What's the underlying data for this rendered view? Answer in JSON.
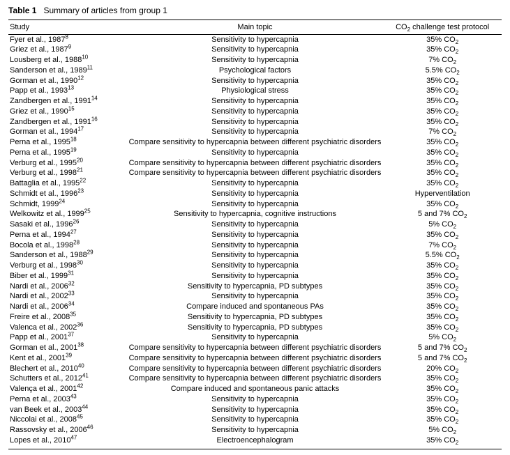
{
  "table": {
    "title_prefix": "Table 1",
    "title_rest": "Summary of articles from group 1",
    "columns": [
      "Study",
      "Main topic",
      "CO2 challenge test protocol"
    ],
    "protocol_header_html": "CO<sub>2</sub> challenge test protocol",
    "rows": [
      {
        "author": "Fyer et al., 1987",
        "ref": "8",
        "topic": "Sensitivity to hypercapnia",
        "protocol": "35% CO2"
      },
      {
        "author": "Griez et al., 1987",
        "ref": "9",
        "topic": "Sensitivity to hypercapnia",
        "protocol": "35% CO2"
      },
      {
        "author": "Lousberg et al., 1988",
        "ref": "10",
        "topic": "Sensitivity to hypercapnia",
        "protocol": "7% CO2"
      },
      {
        "author": "Sanderson et al., 1989",
        "ref": "11",
        "topic": "Psychological factors",
        "protocol": "5.5% CO2"
      },
      {
        "author": "Gorman et al., 1990",
        "ref": "12",
        "topic": "Sensitivity to hypercapnia",
        "protocol": "35% CO2"
      },
      {
        "author": "Papp et al., 1993",
        "ref": "13",
        "topic": "Physiological stress",
        "protocol": "35% CO2"
      },
      {
        "author": "Zandbergen et al., 1991",
        "ref": "14",
        "topic": "Sensitivity to hypercapnia",
        "protocol": "35% CO2"
      },
      {
        "author": "Griez et al., 1990",
        "ref": "15",
        "topic": "Sensitivity to hypercapnia",
        "protocol": "35% CO2"
      },
      {
        "author": "Zandbergen et al., 1991",
        "ref": "16",
        "topic": "Sensitivity to hypercapnia",
        "protocol": "35% CO2"
      },
      {
        "author": "Gorman et al., 1994",
        "ref": "17",
        "topic": "Sensitivity to hypercapnia",
        "protocol": "7% CO2"
      },
      {
        "author": "Perna et al., 1995",
        "ref": "18",
        "topic": "Compare sensitivity to hypercapnia between different psychiatric disorders",
        "protocol": "35% CO2"
      },
      {
        "author": "Perna et al., 1995",
        "ref": "19",
        "topic": "Sensitivity to hypercapnia",
        "protocol": "35% CO2"
      },
      {
        "author": "Verburg et al., 1995",
        "ref": "20",
        "topic": "Compare sensitivity to hypercapnia between different psychiatric disorders",
        "protocol": "35% CO2"
      },
      {
        "author": "Verburg et al., 1998",
        "ref": "21",
        "topic": "Compare sensitivity to hypercapnia between different psychiatric disorders",
        "protocol": "35% CO2"
      },
      {
        "author": "Battaglia et al., 1995",
        "ref": "22",
        "topic": "Sensitivity to hypercapnia",
        "protocol": "35% CO2"
      },
      {
        "author": "Schmidt et al., 1996",
        "ref": "23",
        "topic": "Sensitivity to hypercapnia",
        "protocol": "Hyperventilation"
      },
      {
        "author": "Schmidt, 1999",
        "ref": "24",
        "topic": "Sensitivity to hypercapnia",
        "protocol": "35% CO2"
      },
      {
        "author": "Welkowitz et al., 1999",
        "ref": "25",
        "topic": "Sensitivity to hypercapnia, cognitive instructions",
        "protocol": "5 and 7% CO2"
      },
      {
        "author": "Sasaki et al., 1996",
        "ref": "26",
        "topic": "Sensitivity to hypercapnia",
        "protocol": "5% CO2"
      },
      {
        "author": "Perna et al., 1994",
        "ref": "27",
        "topic": "Sensitivity to hypercapnia",
        "protocol": "35% CO2"
      },
      {
        "author": "Bocola et al., 1998",
        "ref": "28",
        "topic": "Sensitivity to hypercapnia",
        "protocol": "7% CO2"
      },
      {
        "author": "Sanderson et al., 1988",
        "ref": "29",
        "topic": "Sensitivity to hypercapnia",
        "protocol": "5.5% CO2"
      },
      {
        "author": "Verburg et al., 1998",
        "ref": "30",
        "topic": "Sensitivity to hypercapnia",
        "protocol": "35% CO2"
      },
      {
        "author": "Biber et al., 1999",
        "ref": "31",
        "topic": "Sensitivity to hypercapnia",
        "protocol": "35% CO2"
      },
      {
        "author": "Nardi et al., 2006",
        "ref": "32",
        "topic": "Sensitivity to hypercapnia, PD subtypes",
        "protocol": "35% CO2"
      },
      {
        "author": "Nardi et al., 2002",
        "ref": "33",
        "topic": "Sensitivity to hypercapnia",
        "protocol": "35% CO2"
      },
      {
        "author": "Nardi et al., 2006",
        "ref": "34",
        "topic": "Compare induced and spontaneous PAs",
        "protocol": "35% CO2"
      },
      {
        "author": "Freire et al., 2008",
        "ref": "35",
        "topic": "Sensitivity to hypercapnia, PD subtypes",
        "protocol": "35% CO2"
      },
      {
        "author": "Valenca et al., 2002",
        "ref": "36",
        "topic": "Sensitivity to hypercapnia, PD subtypes",
        "protocol": "35% CO2"
      },
      {
        "author": "Papp et al., 2001",
        "ref": "37",
        "topic": "Sensitivity to hypercapnia",
        "protocol": "5% CO2"
      },
      {
        "author": "Gorman et al., 2001",
        "ref": "38",
        "topic": "Compare sensitivity to hypercapnia between different psychiatric disorders",
        "protocol": "5 and 7% CO2"
      },
      {
        "author": "Kent et al., 2001",
        "ref": "39",
        "topic": "Compare sensitivity to hypercapnia between different psychiatric disorders",
        "protocol": "5 and 7% CO2"
      },
      {
        "author": "Blechert et al., 2010",
        "ref": "40",
        "topic": "Compare sensitivity to hypercapnia between different psychiatric disorders",
        "protocol": "20% CO2"
      },
      {
        "author": "Schutters et al., 2012",
        "ref": "41",
        "topic": "Compare sensitivity to hypercapnia between different psychiatric disorders",
        "protocol": "35% CO2"
      },
      {
        "author": "Valença et al., 2001",
        "ref": "42",
        "topic": "Compare induced and spontaneous panic attacks",
        "protocol": "35% CO2"
      },
      {
        "author": "Perna et al., 2003",
        "ref": "43",
        "topic": "Sensitivity to hypercapnia",
        "protocol": "35% CO2"
      },
      {
        "author": "van Beek et al., 2003",
        "ref": "44",
        "topic": "Sensitivity to hypercapnia",
        "protocol": "35% CO2"
      },
      {
        "author": "Niccolai et al., 2008",
        "ref": "45",
        "topic": "Sensitivity to hypercapnia",
        "protocol": "35% CO2"
      },
      {
        "author": "Rassovsky et al., 2006",
        "ref": "46",
        "topic": "Sensitivity to hypercapnia",
        "protocol": "5% CO2"
      },
      {
        "author": "Lopes et al., 2010",
        "ref": "47",
        "topic": "Electroencephalogram",
        "protocol": "35% CO2"
      }
    ]
  }
}
